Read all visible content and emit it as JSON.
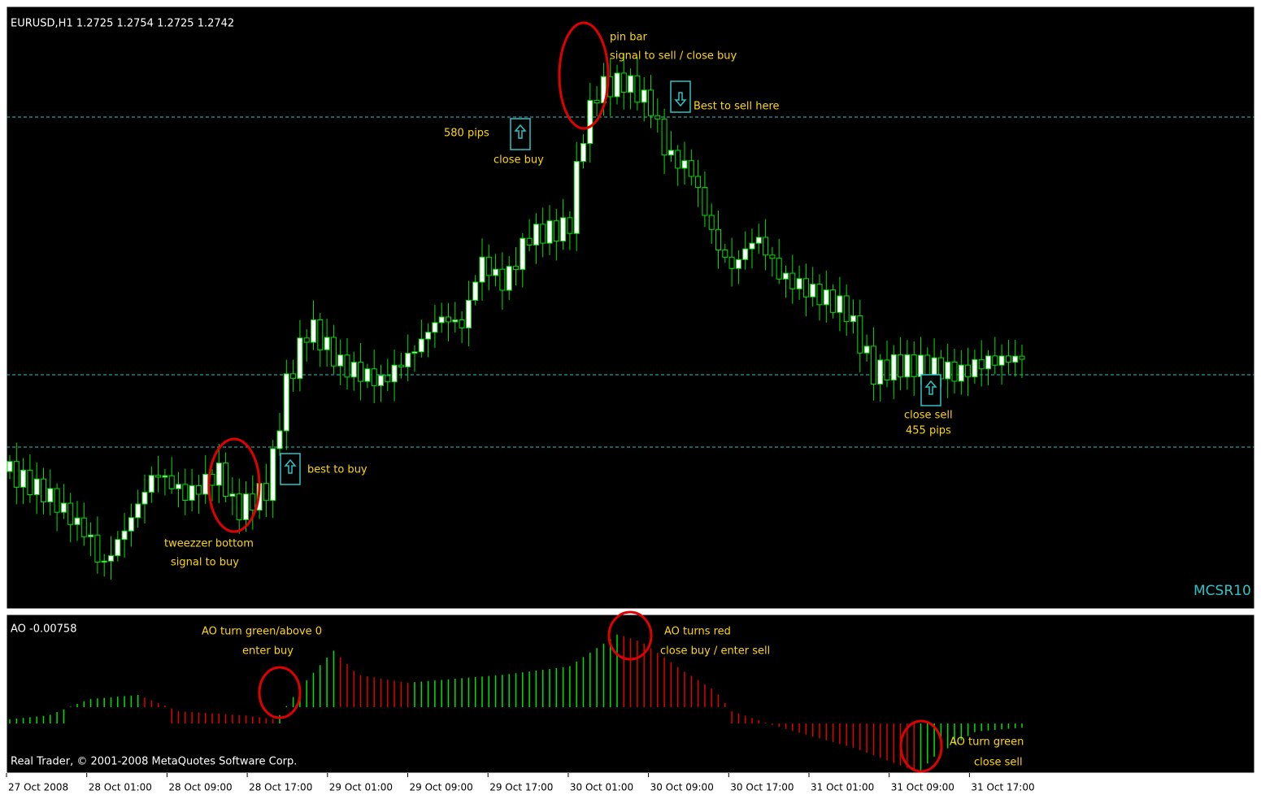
{
  "header": {
    "symbol_info": "EURUSD,H1  1.2725 1.2754 1.2725 1.2742",
    "watermark": "MCSR10"
  },
  "annotations": [
    "pin bar",
    "signal to sell / close buy",
    "Best to sell here",
    "580 pips",
    "close buy",
    "best to buy",
    "tweezzer bottom",
    "signal to buy",
    "close sell",
    "455 pips"
  ],
  "indicator": {
    "label": "AO -0.00758",
    "annotations": [
      "AO turn green/above 0",
      "enter buy",
      "AO turns red",
      "close buy / enter sell",
      "AO turn green",
      "close sell"
    ],
    "copyright": "Real Trader, © 2001-2008 MetaQuotes Software Corp."
  },
  "time_axis": [
    "27 Oct 2008",
    "28 Oct 01:00",
    "28 Oct 09:00",
    "28 Oct 17:00",
    "29 Oct 01:00",
    "29 Oct 09:00",
    "29 Oct 17:00",
    "30 Oct 01:00",
    "30 Oct 09:00",
    "30 Oct 17:00",
    "31 Oct 01:00",
    "31 Oct 09:00",
    "31 Oct 17:00"
  ]
}
